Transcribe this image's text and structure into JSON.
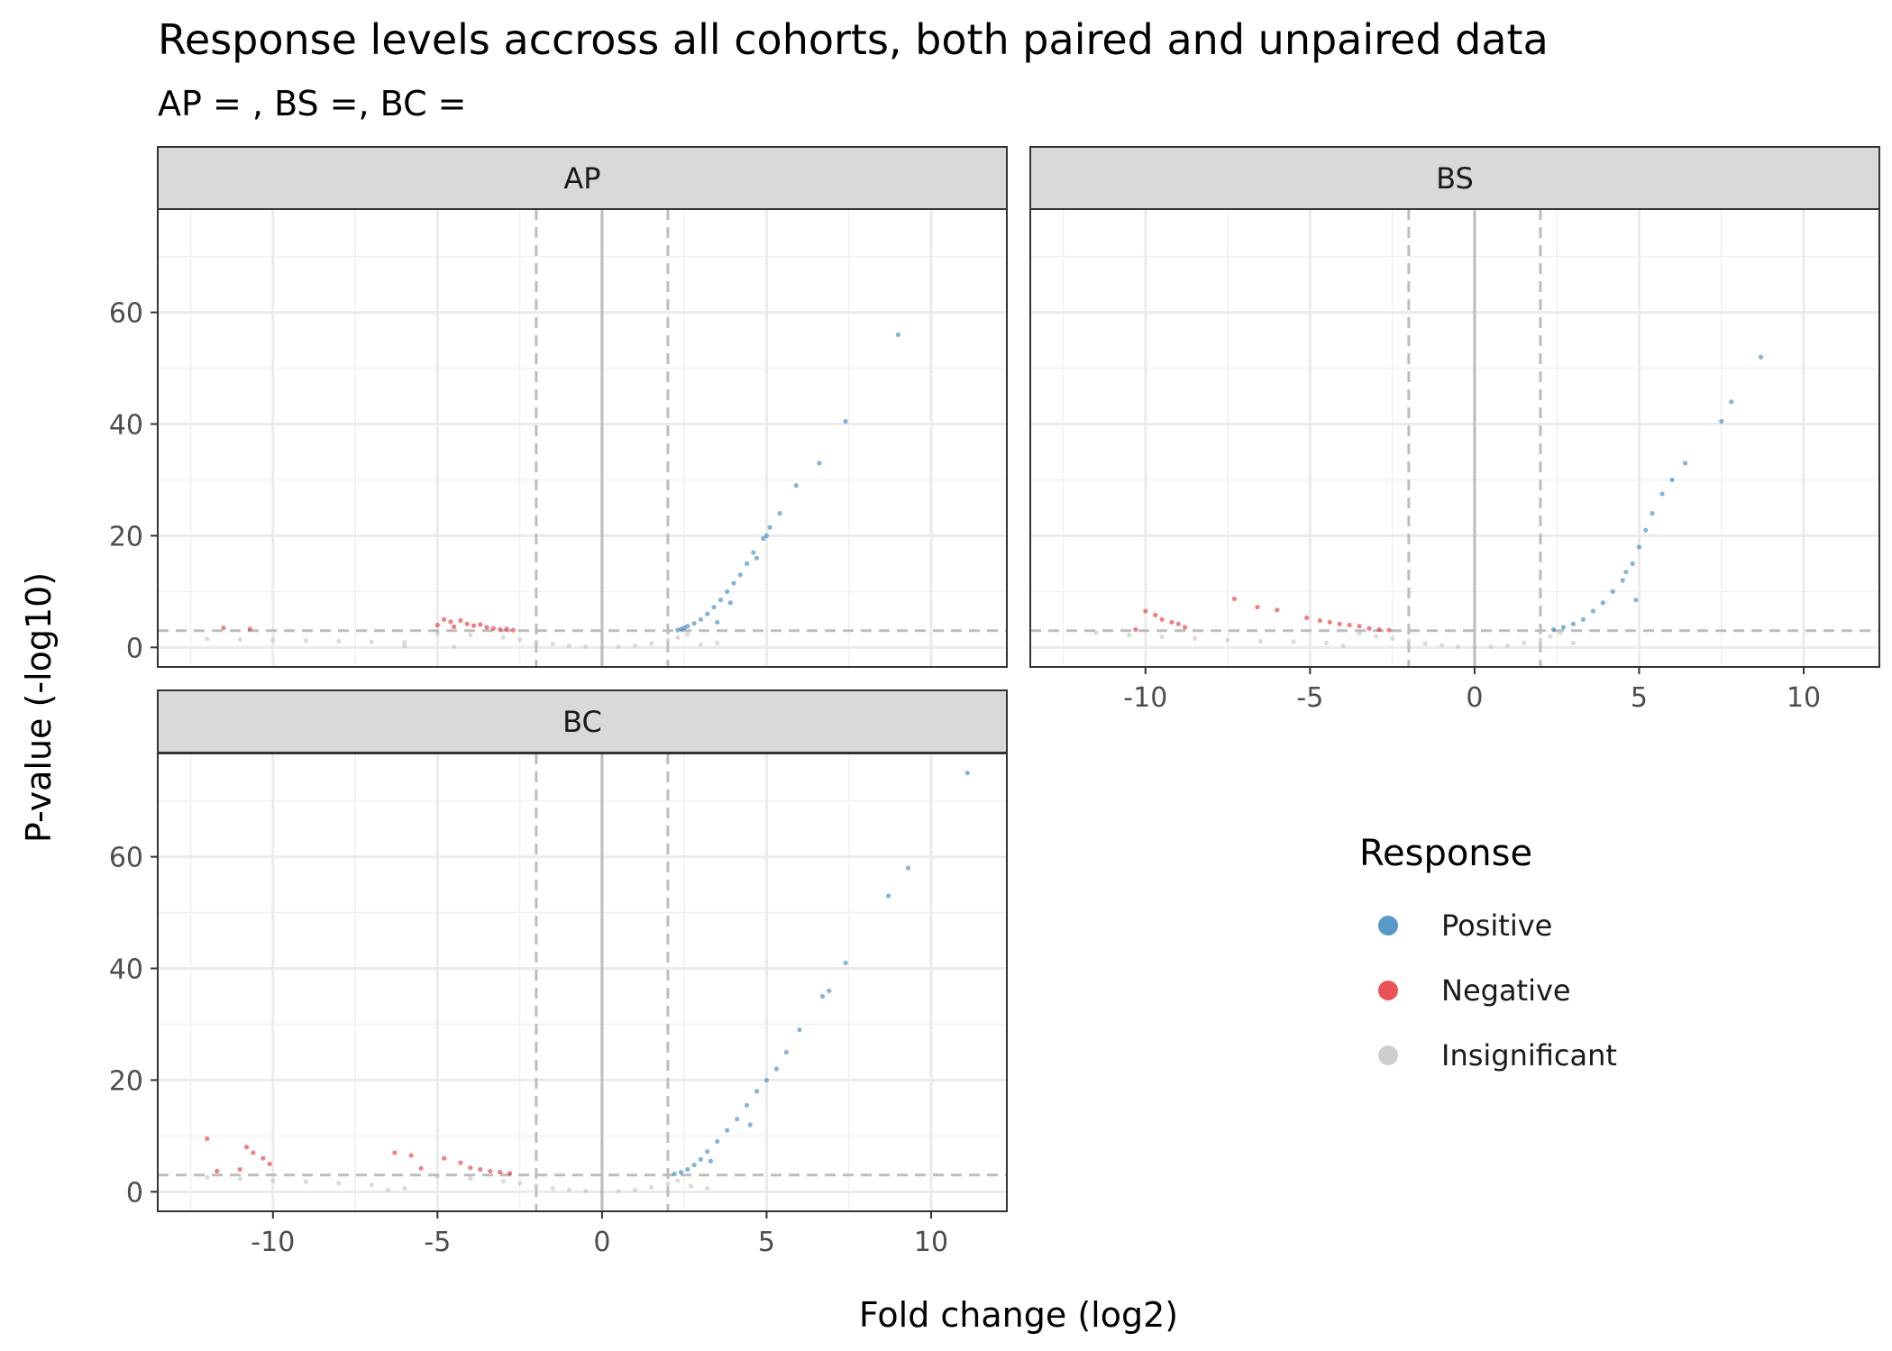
{
  "chart_data": {
    "type": "scatter",
    "title": "Response levels accross all cohorts, both paired and unpaired data",
    "subtitle": "AP = , BS =, BC =",
    "xlabel": "Fold change (log2)",
    "ylabel": "P-value (-log10)",
    "xlim": [
      -13.5,
      12.3
    ],
    "ylim": [
      -3.5,
      78.5
    ],
    "x_ticks": [
      -10,
      -5,
      0,
      5,
      10
    ],
    "x_tick_labels": [
      "-10",
      "-5",
      "0",
      "5",
      "10"
    ],
    "y_ticks": [
      0,
      20,
      40,
      60
    ],
    "y_tick_labels": [
      "0",
      "20",
      "40",
      "60"
    ],
    "thresholds": {
      "fold_change": [
        -2,
        2
      ],
      "p_value": 3
    },
    "grid": true,
    "legend": {
      "title": "Response",
      "position": "right",
      "items": [
        {
          "label": "Positive",
          "color": "#1f77b4"
        },
        {
          "label": "Negative",
          "color": "#e31a1c"
        },
        {
          "label": "Insignificant",
          "color": "#bdbdbd"
        }
      ]
    },
    "panels": [
      {
        "name": "AP",
        "series": [
          {
            "category": "Positive",
            "points": [
              [
                9.0,
                56
              ],
              [
                7.4,
                40.5
              ],
              [
                6.6,
                33
              ],
              [
                5.9,
                29
              ],
              [
                5.4,
                24
              ],
              [
                5.1,
                21.5
              ],
              [
                4.9,
                19.5
              ],
              [
                4.6,
                17
              ],
              [
                4.4,
                15
              ],
              [
                4.2,
                13
              ],
              [
                4.0,
                11.5
              ],
              [
                3.8,
                10
              ],
              [
                3.6,
                8.5
              ],
              [
                3.4,
                7.2
              ],
              [
                3.2,
                6.0
              ],
              [
                3.0,
                5.0
              ],
              [
                2.8,
                4.3
              ],
              [
                2.6,
                3.8
              ],
              [
                2.5,
                3.5
              ],
              [
                2.4,
                3.3
              ],
              [
                2.3,
                3.1
              ],
              [
                3.5,
                4.5
              ],
              [
                3.9,
                8
              ],
              [
                4.7,
                16
              ],
              [
                5.0,
                20
              ]
            ]
          },
          {
            "category": "Negative",
            "points": [
              [
                -11.5,
                3.5
              ],
              [
                -10.7,
                3.3
              ],
              [
                -4.8,
                5.0
              ],
              [
                -4.6,
                4.6
              ],
              [
                -4.3,
                4.8
              ],
              [
                -4.1,
                4.2
              ],
              [
                -3.9,
                3.9
              ],
              [
                -3.7,
                4.1
              ],
              [
                -3.5,
                3.6
              ],
              [
                -3.3,
                3.4
              ],
              [
                -3.1,
                3.2
              ],
              [
                -2.9,
                3.3
              ],
              [
                -2.7,
                3.1
              ],
              [
                -5.0,
                4.0
              ],
              [
                -4.5,
                3.7
              ]
            ]
          },
          {
            "category": "Insignificant",
            "points": [
              [
                -12,
                1.5
              ],
              [
                -11,
                1.4
              ],
              [
                -10,
                1.3
              ],
              [
                -9,
                1.2
              ],
              [
                -8,
                1.1
              ],
              [
                -7,
                1.0
              ],
              [
                -6,
                0.9
              ],
              [
                -5,
                2.5
              ],
              [
                -4,
                2.2
              ],
              [
                -3,
                1.8
              ],
              [
                -2.5,
                1.4
              ],
              [
                -2,
                1.0
              ],
              [
                -1.5,
                0.6
              ],
              [
                -1,
                0.3
              ],
              [
                -0.5,
                0.1
              ],
              [
                0,
                0
              ],
              [
                0.5,
                0.1
              ],
              [
                1,
                0.3
              ],
              [
                1.5,
                0.7
              ],
              [
                2,
                1.3
              ],
              [
                2.3,
                1.8
              ],
              [
                2.6,
                2.3
              ],
              [
                3.0,
                0.5
              ],
              [
                3.5,
                0.8
              ],
              [
                -6,
                0.2
              ],
              [
                -4.5,
                0.1
              ]
            ]
          }
        ]
      },
      {
        "name": "BS",
        "series": [
          {
            "category": "Positive",
            "points": [
              [
                8.7,
                52
              ],
              [
                7.8,
                44
              ],
              [
                7.5,
                40.5
              ],
              [
                6.4,
                33
              ],
              [
                6.0,
                30
              ],
              [
                5.7,
                27.5
              ],
              [
                5.4,
                24
              ],
              [
                5.0,
                18
              ],
              [
                4.8,
                15
              ],
              [
                4.6,
                13.5
              ],
              [
                4.2,
                10
              ],
              [
                3.9,
                8
              ],
              [
                3.6,
                6.5
              ],
              [
                3.3,
                5.0
              ],
              [
                3.0,
                4.2
              ],
              [
                2.7,
                3.6
              ],
              [
                2.4,
                3.2
              ],
              [
                4.9,
                8.5
              ],
              [
                5.2,
                21
              ],
              [
                4.5,
                12
              ]
            ]
          },
          {
            "category": "Negative",
            "points": [
              [
                -10.0,
                6.5
              ],
              [
                -9.7,
                5.8
              ],
              [
                -9.5,
                5.0
              ],
              [
                -9.2,
                4.5
              ],
              [
                -9.0,
                4.2
              ],
              [
                -8.8,
                3.6
              ],
              [
                -10.3,
                3.2
              ],
              [
                -7.3,
                8.7
              ],
              [
                -6.6,
                7.2
              ],
              [
                -6.0,
                6.7
              ],
              [
                -5.1,
                5.3
              ],
              [
                -4.7,
                4.8
              ],
              [
                -4.4,
                4.5
              ],
              [
                -4.1,
                4.2
              ],
              [
                -3.8,
                4.0
              ],
              [
                -3.5,
                3.8
              ],
              [
                -3.2,
                3.4
              ],
              [
                -2.9,
                3.2
              ],
              [
                -2.6,
                3.1
              ]
            ]
          },
          {
            "category": "Insignificant",
            "points": [
              [
                -11.5,
                2.6
              ],
              [
                -10.5,
                2.2
              ],
              [
                -9.5,
                1.9
              ],
              [
                -8.5,
                1.6
              ],
              [
                -7.5,
                1.3
              ],
              [
                -6.5,
                1.1
              ],
              [
                -5.5,
                1.0
              ],
              [
                -4.5,
                0.8
              ],
              [
                -3.5,
                2.5
              ],
              [
                -3,
                2.0
              ],
              [
                -2.5,
                1.6
              ],
              [
                -2,
                1.2
              ],
              [
                -1.5,
                0.7
              ],
              [
                -1,
                0.4
              ],
              [
                -0.5,
                0.1
              ],
              [
                0,
                0
              ],
              [
                0.5,
                0.1
              ],
              [
                1,
                0.3
              ],
              [
                1.5,
                0.8
              ],
              [
                2,
                1.4
              ],
              [
                2.3,
                2.0
              ],
              [
                2.6,
                2.6
              ],
              [
                3.0,
                0.8
              ],
              [
                -4,
                0.3
              ]
            ]
          }
        ]
      },
      {
        "name": "BC",
        "series": [
          {
            "category": "Positive",
            "points": [
              [
                11.1,
                75
              ],
              [
                9.3,
                58
              ],
              [
                8.7,
                53
              ],
              [
                7.4,
                41
              ],
              [
                6.9,
                36
              ],
              [
                6.7,
                35
              ],
              [
                6.0,
                29
              ],
              [
                5.6,
                25
              ],
              [
                5.3,
                22
              ],
              [
                5.0,
                20
              ],
              [
                4.7,
                18
              ],
              [
                4.4,
                15.5
              ],
              [
                4.1,
                13
              ],
              [
                3.8,
                11
              ],
              [
                3.5,
                9
              ],
              [
                3.2,
                7.2
              ],
              [
                3.0,
                5.8
              ],
              [
                2.8,
                4.8
              ],
              [
                2.6,
                4.0
              ],
              [
                2.4,
                3.5
              ],
              [
                2.2,
                3.2
              ],
              [
                3.3,
                5.5
              ],
              [
                4.5,
                12
              ]
            ]
          },
          {
            "category": "Negative",
            "points": [
              [
                -12.0,
                9.5
              ],
              [
                -10.8,
                8.0
              ],
              [
                -10.6,
                7.0
              ],
              [
                -10.3,
                6.0
              ],
              [
                -10.1,
                5.0
              ],
              [
                -11.0,
                4.0
              ],
              [
                -11.7,
                3.7
              ],
              [
                -6.3,
                7.0
              ],
              [
                -5.8,
                6.5
              ],
              [
                -4.8,
                6.0
              ],
              [
                -4.3,
                5.2
              ],
              [
                -4.0,
                4.3
              ],
              [
                -3.7,
                4.0
              ],
              [
                -3.4,
                3.7
              ],
              [
                -3.1,
                3.5
              ],
              [
                -2.8,
                3.3
              ],
              [
                -5.5,
                4.2
              ]
            ]
          },
          {
            "category": "Insignificant",
            "points": [
              [
                -12,
                2.6
              ],
              [
                -11,
                2.3
              ],
              [
                -10,
                2.0
              ],
              [
                -9,
                1.8
              ],
              [
                -8,
                1.5
              ],
              [
                -7,
                1.2
              ],
              [
                -6,
                0.6
              ],
              [
                -5,
                2.8
              ],
              [
                -4,
                2.4
              ],
              [
                -3,
                1.9
              ],
              [
                -2.5,
                1.5
              ],
              [
                -2,
                1.1
              ],
              [
                -1.5,
                0.6
              ],
              [
                -1,
                0.3
              ],
              [
                -0.5,
                0.1
              ],
              [
                0,
                0
              ],
              [
                0.5,
                0.1
              ],
              [
                1,
                0.3
              ],
              [
                1.5,
                0.8
              ],
              [
                2,
                1.4
              ],
              [
                2.3,
                2.0
              ],
              [
                2.7,
                1.0
              ],
              [
                3.2,
                0.6
              ],
              [
                -6.5,
                0.3
              ]
            ]
          }
        ]
      }
    ]
  }
}
